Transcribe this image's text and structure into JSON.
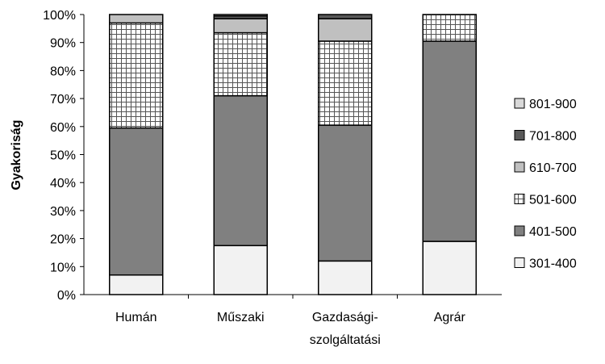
{
  "chart_data": {
    "type": "bar",
    "stacked": true,
    "percent": true,
    "title": "",
    "xlabel": "",
    "ylabel": "Gyakoriság",
    "ylim": [
      0,
      100
    ],
    "yticks": [
      "0%",
      "10%",
      "20%",
      "30%",
      "40%",
      "50%",
      "60%",
      "70%",
      "80%",
      "90%",
      "100%"
    ],
    "categories": [
      [
        "Humán"
      ],
      [
        "Műszaki"
      ],
      [
        "Gazdasági-",
        "szolgáltatási"
      ],
      [
        "Agrár"
      ]
    ],
    "legend_position": "right",
    "grid": false,
    "series": [
      {
        "name": "301-400",
        "color": "#f2f2f2",
        "pattern": "solid",
        "values": [
          7,
          17.5,
          12,
          19
        ]
      },
      {
        "name": "401-500",
        "color": "#808080",
        "pattern": "solid",
        "values": [
          52.5,
          53.5,
          48.5,
          71.5
        ]
      },
      {
        "name": "501-600",
        "color": "#ffffff",
        "pattern": "grid",
        "values": [
          37.5,
          22.5,
          30,
          9.5
        ]
      },
      {
        "name": "610-700",
        "color": "#c0c0c0",
        "pattern": "solid",
        "values": [
          3,
          5,
          8,
          0
        ]
      },
      {
        "name": "701-800",
        "color": "#595959",
        "pattern": "solid",
        "values": [
          0,
          1,
          1.5,
          0
        ]
      },
      {
        "name": "801-900",
        "color": "#d9d9d9",
        "pattern": "solid",
        "values": [
          0,
          0.5,
          0,
          0
        ]
      }
    ]
  }
}
